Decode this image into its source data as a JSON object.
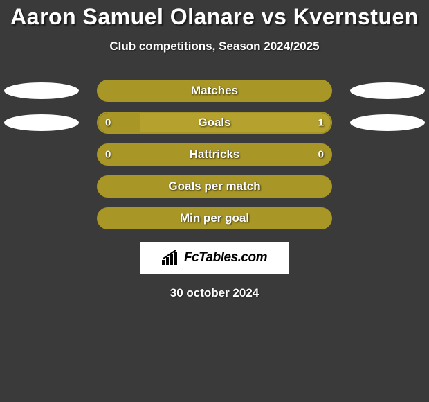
{
  "title": "Aaron Samuel Olanare vs Kvernstuen",
  "subtitle": "Club competitions, Season 2024/2025",
  "date": "30 october 2024",
  "logo_text": "FcTables.com",
  "colors": {
    "background": "#3a3a3a",
    "bar_border": "#a89626",
    "bar_fill": "#a89626",
    "bar_fill_alt": "#b5a22e",
    "ellipse": "#ffffff",
    "text": "#ffffff",
    "logo_bg": "#ffffff",
    "logo_text": "#000000"
  },
  "ellipses": {
    "left_row": 0,
    "right_row": 1
  },
  "rows": [
    {
      "label": "Matches",
      "left_val": "",
      "right_val": "",
      "left_pct": 100,
      "right_pct": 0,
      "fill_color": "#a89626"
    },
    {
      "label": "Goals",
      "left_val": "0",
      "right_val": "1",
      "left_pct": 18,
      "right_pct": 82,
      "fill_color_left": "#a89626",
      "fill_color_right": "#b5a22e"
    },
    {
      "label": "Hattricks",
      "left_val": "0",
      "right_val": "0",
      "left_pct": 100,
      "right_pct": 0,
      "fill_color": "#a89626"
    },
    {
      "label": "Goals per match",
      "left_val": "",
      "right_val": "",
      "left_pct": 100,
      "right_pct": 0,
      "fill_color": "#a89626"
    },
    {
      "label": "Min per goal",
      "left_val": "",
      "right_val": "",
      "left_pct": 100,
      "right_pct": 0,
      "fill_color": "#a89626"
    }
  ]
}
